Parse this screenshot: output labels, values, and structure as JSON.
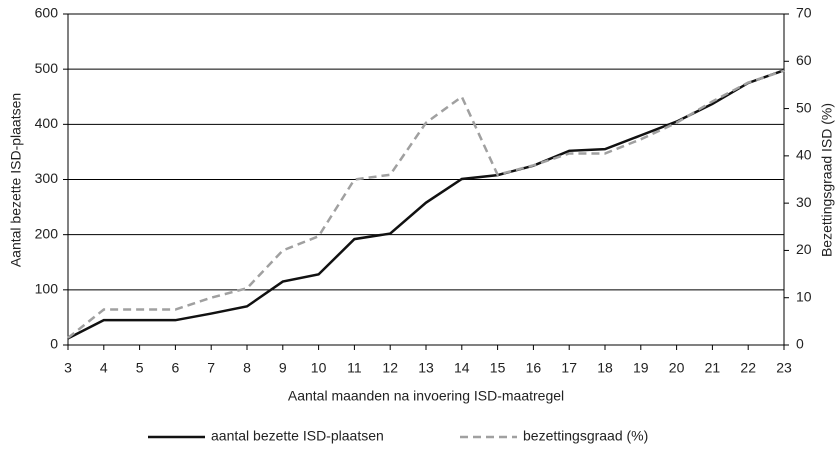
{
  "chart_data": {
    "type": "line",
    "x_label": "Aantal maanden na invoering ISD-maatregel",
    "y_label": "Aantal bezette ISD-plaatsen",
    "y2_label": "Bezettingsgraad ISD (%)",
    "x": [
      3,
      4,
      5,
      6,
      7,
      8,
      9,
      10,
      11,
      12,
      13,
      14,
      15,
      16,
      17,
      18,
      19,
      20,
      21,
      22,
      23
    ],
    "xlim": [
      3,
      23
    ],
    "xticks": [
      3,
      4,
      5,
      6,
      7,
      8,
      9,
      10,
      11,
      12,
      13,
      14,
      15,
      16,
      17,
      18,
      19,
      20,
      21,
      22,
      23
    ],
    "ylim": [
      0,
      600
    ],
    "yticks": [
      0,
      100,
      200,
      300,
      400,
      500,
      600
    ],
    "y2lim": [
      0,
      70
    ],
    "y2ticks": [
      0,
      10,
      20,
      30,
      40,
      50,
      60,
      70
    ],
    "grid": true,
    "legend": "bottom",
    "series": [
      {
        "name": "aantal bezette ISD-plaatsen",
        "color": "#111111",
        "style": "solid",
        "values": [
          12,
          45,
          45,
          45,
          57,
          70,
          115,
          128,
          192,
          202,
          258,
          301,
          308,
          325,
          352,
          355,
          380,
          405,
          437,
          475,
          498
        ]
      },
      {
        "name": "bezettingsgraad (%)",
        "color": "#a0a0a0",
        "style": "dashed",
        "axis": "y2",
        "values": [
          1.5,
          7.5,
          7.5,
          7.5,
          10,
          12,
          20,
          23,
          35,
          36,
          47,
          52.5,
          36,
          38,
          40.5,
          40.5,
          43.5,
          47,
          51.5,
          55.5,
          58
        ]
      }
    ]
  }
}
